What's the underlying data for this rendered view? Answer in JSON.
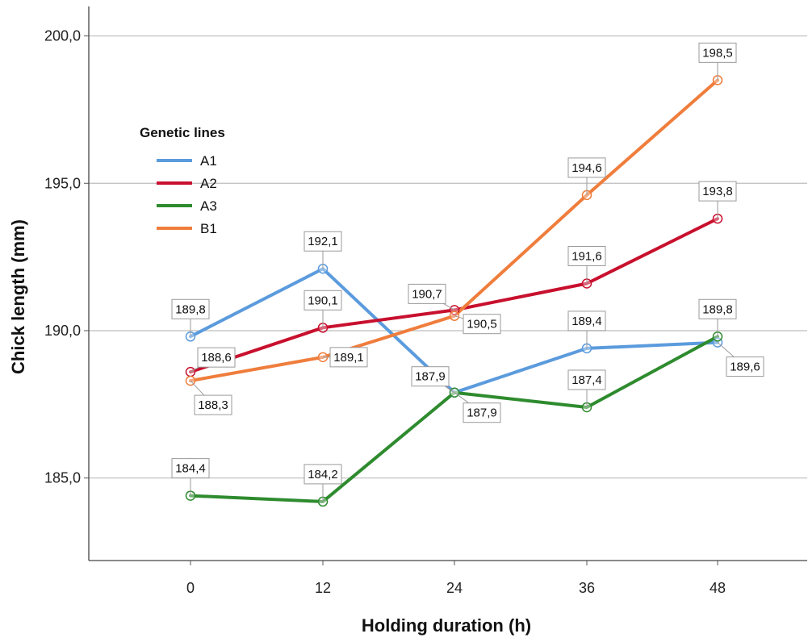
{
  "chart_data": {
    "type": "line",
    "xlabel": "Holding duration (h)",
    "ylabel": "Chick length (mm)",
    "x": [
      0,
      12,
      24,
      36,
      48
    ],
    "x_tick_labels": [
      "0",
      "12",
      "24",
      "36",
      "48"
    ],
    "ylim": [
      182.2,
      201.0
    ],
    "y_ticks": [
      185.0,
      190.0,
      195.0,
      200.0
    ],
    "y_tick_labels": [
      "185,0",
      "190,0",
      "195,0",
      "200,0"
    ],
    "grid": "horizontal",
    "legend": {
      "title": "Genetic lines",
      "placement": "top-left"
    },
    "series": [
      {
        "name": "A1",
        "color": "#5B9BDD",
        "values": [
          189.8,
          192.1,
          187.9,
          189.4,
          189.6
        ],
        "labels": [
          "189,8",
          "192,1",
          "187,9",
          "189,4",
          "189,6"
        ]
      },
      {
        "name": "A2",
        "color": "#C8102E",
        "values": [
          188.6,
          190.1,
          190.7,
          191.6,
          193.8
        ],
        "labels": [
          "188,6",
          "190,1",
          "190,7",
          "191,6",
          "193,8"
        ]
      },
      {
        "name": "A3",
        "color": "#2E8B2E",
        "values": [
          184.4,
          184.2,
          187.9,
          187.4,
          189.8
        ],
        "labels": [
          "184,4",
          "184,2",
          "187,9",
          "187,4",
          "189,8"
        ]
      },
      {
        "name": "B1",
        "color": "#EF7D3C",
        "values": [
          188.3,
          189.1,
          190.5,
          194.6,
          198.5
        ],
        "labels": [
          "188,3",
          "189,1",
          "190,5",
          "194,6",
          "198,5"
        ]
      }
    ]
  }
}
